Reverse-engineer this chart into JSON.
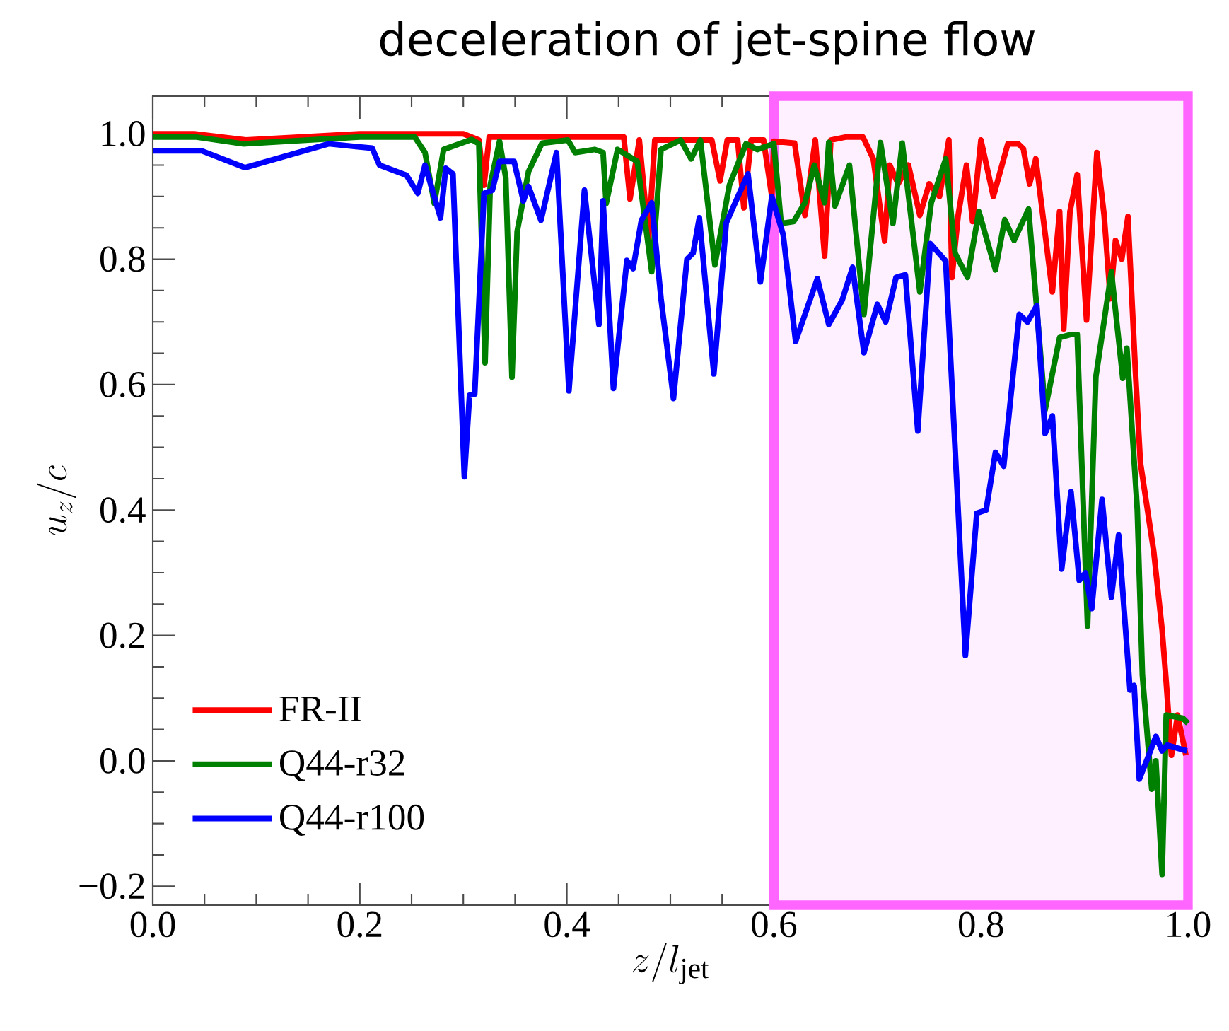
{
  "chart_data": {
    "type": "line",
    "title": "deceleration of jet-spine flow",
    "xlabel": "z/l_{\\mathrm{jet}}",
    "ylabel": "u_z/c",
    "xlim": [
      0,
      1.0
    ],
    "ylim": [
      -0.23,
      1.06
    ],
    "xticks": [
      {
        "value": 0,
        "label": "0.0"
      },
      {
        "value": 0.2,
        "label": "0.2"
      },
      {
        "value": 0.4,
        "label": "0.4"
      },
      {
        "value": 0.6,
        "label": "0.6"
      },
      {
        "value": 0.8,
        "label": "0.8"
      },
      {
        "value": 1.0,
        "label": "1.0"
      }
    ],
    "yticks": [
      {
        "value": -0.2,
        "label": "−0.2"
      },
      {
        "value": 0,
        "label": "0.0"
      },
      {
        "value": 0.2,
        "label": "0.2"
      },
      {
        "value": 0.4,
        "label": "0.4"
      },
      {
        "value": 0.6,
        "label": "0.6"
      },
      {
        "value": 0.8,
        "label": "0.8"
      },
      {
        "value": 1.0,
        "label": "1.0"
      }
    ],
    "legend": "bottom left",
    "line_style": "solid",
    "bands": [
      {
        "axis": "x",
        "from": 0.6,
        "to": 1.0,
        "color": "#ff66ff"
      }
    ],
    "series": [
      {
        "name": "FR-II",
        "color": "#ff0000",
        "x": [
          0,
          0.04,
          0.09,
          0.2,
          0.3,
          0.315,
          0.32,
          0.325,
          0.455,
          0.461,
          0.47,
          0.479,
          0.485,
          0.54,
          0.548,
          0.555,
          0.565,
          0.571,
          0.578,
          0.59,
          0.598,
          0.6,
          0.62,
          0.63,
          0.64,
          0.649,
          0.655,
          0.67,
          0.686,
          0.696,
          0.707,
          0.712,
          0.72,
          0.73,
          0.741,
          0.75,
          0.76,
          0.769,
          0.772,
          0.778,
          0.786,
          0.792,
          0.8,
          0.812,
          0.826,
          0.836,
          0.841,
          0.847,
          0.853,
          0.869,
          0.876,
          0.88,
          0.886,
          0.893,
          0.902,
          0.912,
          0.919,
          0.925,
          0.93,
          0.936,
          0.942,
          0.949,
          0.954,
          0.967,
          0.975,
          0.979,
          0.984,
          0.99,
          0.998
        ],
        "values": [
          1.0,
          1.0,
          0.99,
          1.0,
          1.0,
          0.99,
          0.918,
          0.995,
          0.995,
          0.896,
          0.99,
          0.832,
          0.99,
          0.99,
          0.925,
          0.99,
          0.99,
          0.882,
          0.99,
          0.99,
          0.9,
          0.988,
          0.985,
          0.87,
          0.99,
          0.805,
          0.99,
          0.995,
          0.995,
          0.96,
          0.829,
          0.95,
          0.92,
          0.95,
          0.87,
          0.92,
          0.9,
          0.99,
          0.771,
          0.87,
          0.95,
          0.86,
          0.99,
          0.9,
          0.984,
          0.984,
          0.976,
          0.92,
          0.96,
          0.748,
          0.876,
          0.689,
          0.876,
          0.935,
          0.703,
          0.97,
          0.87,
          0.737,
          0.83,
          0.8,
          0.868,
          0.628,
          0.476,
          0.333,
          0.209,
          0.125,
          0.009,
          0.073,
          0.009
        ]
      },
      {
        "name": "Q44-r32",
        "color": "#008000",
        "x": [
          0,
          0.041,
          0.087,
          0.2,
          0.253,
          0.263,
          0.272,
          0.281,
          0.308,
          0.315,
          0.321,
          0.326,
          0.335,
          0.341,
          0.347,
          0.352,
          0.363,
          0.376,
          0.401,
          0.408,
          0.427,
          0.435,
          0.438,
          0.449,
          0.468,
          0.482,
          0.491,
          0.51,
          0.52,
          0.529,
          0.543,
          0.557,
          0.573,
          0.584,
          0.6,
          0.607,
          0.619,
          0.63,
          0.639,
          0.649,
          0.653,
          0.659,
          0.673,
          0.687,
          0.703,
          0.715,
          0.724,
          0.741,
          0.752,
          0.766,
          0.775,
          0.787,
          0.798,
          0.814,
          0.823,
          0.832,
          0.846,
          0.862,
          0.876,
          0.887,
          0.893,
          0.903,
          0.911,
          0.926,
          0.937,
          0.941,
          0.951,
          0.956,
          0.965,
          0.969,
          0.975,
          0.979,
          0.995,
          1.0
        ],
        "values": [
          0.995,
          0.995,
          0.984,
          0.995,
          0.995,
          0.97,
          0.889,
          0.975,
          0.991,
          0.984,
          0.635,
          0.918,
          0.988,
          0.93,
          0.612,
          0.844,
          0.94,
          0.985,
          0.99,
          0.97,
          0.975,
          0.97,
          0.889,
          0.975,
          0.956,
          0.78,
          0.975,
          0.99,
          0.96,
          0.99,
          0.791,
          0.918,
          0.984,
          0.975,
          0.984,
          0.857,
          0.86,
          0.89,
          0.95,
          0.89,
          0.986,
          0.885,
          0.95,
          0.712,
          0.986,
          0.857,
          0.985,
          0.748,
          0.89,
          0.96,
          0.81,
          0.771,
          0.876,
          0.783,
          0.863,
          0.83,
          0.88,
          0.56,
          0.675,
          0.68,
          0.68,
          0.215,
          0.612,
          0.78,
          0.61,
          0.658,
          0.401,
          0.136,
          -0.045,
          0.0,
          -0.181,
          0.073,
          0.068,
          0.06
        ]
      },
      {
        "name": "Q44-r100",
        "color": "#0000ff",
        "x": [
          0,
          0.047,
          0.089,
          0.17,
          0.212,
          0.219,
          0.245,
          0.256,
          0.263,
          0.278,
          0.283,
          0.29,
          0.301,
          0.306,
          0.311,
          0.32,
          0.328,
          0.335,
          0.349,
          0.358,
          0.363,
          0.375,
          0.39,
          0.402,
          0.417,
          0.431,
          0.435,
          0.445,
          0.458,
          0.464,
          0.472,
          0.482,
          0.491,
          0.503,
          0.516,
          0.522,
          0.528,
          0.542,
          0.554,
          0.575,
          0.587,
          0.598,
          0.609,
          0.621,
          0.642,
          0.653,
          0.666,
          0.676,
          0.687,
          0.7,
          0.708,
          0.718,
          0.727,
          0.739,
          0.751,
          0.766,
          0.785,
          0.796,
          0.805,
          0.814,
          0.822,
          0.837,
          0.845,
          0.854,
          0.862,
          0.869,
          0.878,
          0.887,
          0.895,
          0.901,
          0.907,
          0.917,
          0.926,
          0.933,
          0.944,
          0.948,
          0.953,
          0.96,
          0.969,
          0.975,
          0.98,
          0.999
        ],
        "values": [
          0.973,
          0.973,
          0.946,
          0.984,
          0.977,
          0.95,
          0.934,
          0.905,
          0.95,
          0.866,
          0.945,
          0.936,
          0.453,
          0.583,
          0.585,
          0.905,
          0.91,
          0.956,
          0.956,
          0.893,
          0.916,
          0.862,
          0.97,
          0.59,
          0.91,
          0.696,
          0.893,
          0.594,
          0.798,
          0.785,
          0.862,
          0.89,
          0.737,
          0.578,
          0.8,
          0.81,
          0.866,
          0.617,
          0.858,
          0.936,
          0.764,
          0.9,
          0.839,
          0.669,
          0.769,
          0.696,
          0.735,
          0.787,
          0.651,
          0.728,
          0.7,
          0.771,
          0.775,
          0.526,
          0.825,
          0.797,
          0.168,
          0.395,
          0.4,
          0.492,
          0.47,
          0.712,
          0.7,
          0.726,
          0.522,
          0.55,
          0.306,
          0.429,
          0.288,
          0.3,
          0.243,
          0.417,
          0.261,
          0.36,
          0.113,
          0.12,
          -0.029,
          0.0,
          0.039,
          0.016,
          0.025,
          0.016
        ]
      }
    ]
  }
}
